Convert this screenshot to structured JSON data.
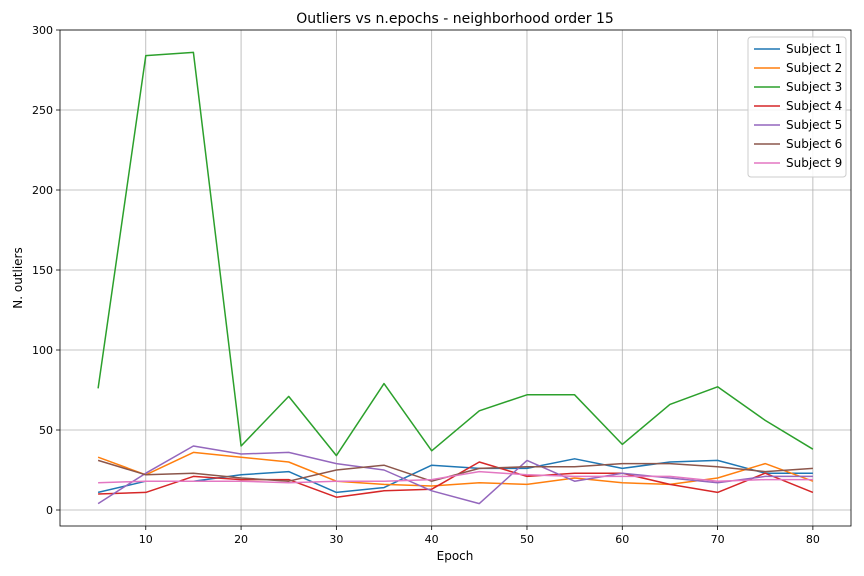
{
  "chart_data": {
    "type": "line",
    "title": "Outliers vs n.epochs - neighborhood order 15",
    "xlabel": "Epoch",
    "ylabel": "N. outliers",
    "xlim": [
      1,
      84
    ],
    "ylim": [
      -10,
      300
    ],
    "xticks": [
      10,
      20,
      30,
      40,
      50,
      60,
      70,
      80
    ],
    "yticks": [
      0,
      50,
      100,
      150,
      200,
      250,
      300
    ],
    "grid": true,
    "legend_position": "top-right",
    "x": [
      5,
      10,
      15,
      20,
      25,
      30,
      35,
      40,
      45,
      50,
      55,
      60,
      65,
      70,
      75,
      80
    ],
    "series": [
      {
        "name": "Subject 1",
        "color": "#1f77b4",
        "values": [
          11,
          18,
          18,
          22,
          24,
          11,
          14,
          28,
          26,
          26,
          32,
          26,
          30,
          31,
          23,
          23
        ]
      },
      {
        "name": "Subject 2",
        "color": "#ff7f0e",
        "values": [
          33,
          22,
          36,
          33,
          30,
          18,
          16,
          15,
          17,
          16,
          20,
          17,
          16,
          20,
          29,
          18
        ]
      },
      {
        "name": "Subject 3",
        "color": "#2ca02c",
        "values": [
          76,
          284,
          286,
          40,
          71,
          34,
          79,
          37,
          62,
          72,
          72,
          41,
          66,
          77,
          56,
          38
        ]
      },
      {
        "name": "Subject 4",
        "color": "#d62728",
        "values": [
          10,
          11,
          21,
          19,
          19,
          8,
          12,
          13,
          30,
          21,
          23,
          23,
          16,
          11,
          23,
          11
        ]
      },
      {
        "name": "Subject 5",
        "color": "#9467bd",
        "values": [
          4,
          23,
          40,
          35,
          36,
          29,
          25,
          12,
          4,
          31,
          18,
          23,
          20,
          17,
          21,
          21
        ]
      },
      {
        "name": "Subject 6",
        "color": "#8c564b",
        "values": [
          31,
          22,
          23,
          20,
          18,
          25,
          28,
          18,
          26,
          27,
          27,
          29,
          29,
          27,
          24,
          26
        ]
      },
      {
        "name": "Subject 9",
        "color": "#e377c2",
        "values": [
          17,
          18,
          18,
          18,
          17,
          18,
          18,
          19,
          24,
          22,
          21,
          21,
          21,
          18,
          19,
          19
        ]
      }
    ]
  }
}
